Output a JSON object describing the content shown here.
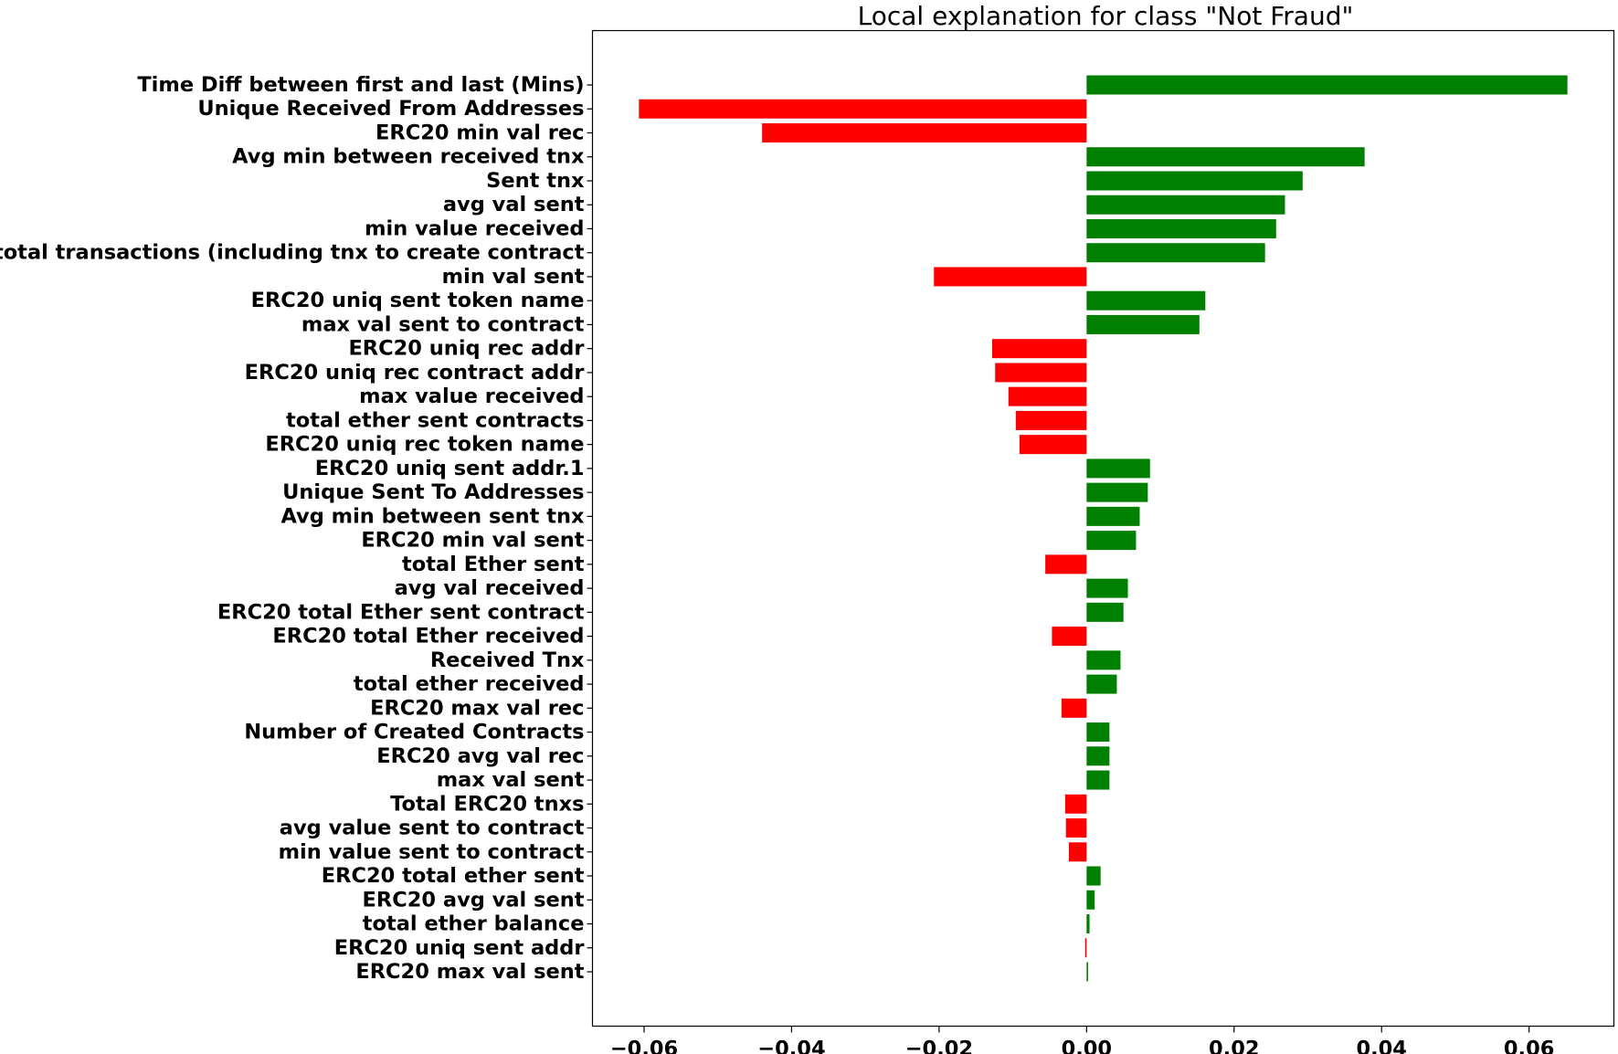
{
  "chart_data": {
    "type": "bar",
    "orientation": "horizontal",
    "title": "Local explanation for class \"Not Fraud\"",
    "xlabel": "",
    "ylabel": "",
    "xlim": [
      -0.067,
      0.0715
    ],
    "xticks": [
      -0.06,
      -0.04,
      -0.02,
      0.0,
      0.02,
      0.04,
      0.06
    ],
    "xtick_labels": [
      "−0.06",
      "−0.04",
      "−0.02",
      "0.00",
      "0.02",
      "0.04",
      "0.06"
    ],
    "grid": false,
    "colors": {
      "positive": "#008000",
      "negative": "#ff0000"
    },
    "categories": [
      "Time Diff between first and last (Mins)",
      "Unique Received From Addresses",
      "ERC20 min val rec",
      "Avg min between received tnx",
      "Sent tnx",
      "avg val sent",
      "min value received",
      "total transactions (including tnx to create contract",
      "min val sent",
      "ERC20 uniq sent token name",
      "max val sent to contract",
      "ERC20 uniq rec addr",
      "ERC20 uniq rec contract addr",
      "max value received ",
      "total ether sent contracts",
      "ERC20 uniq rec token name",
      "ERC20 uniq sent addr.1",
      "Unique Sent To Addresses",
      "Avg min between sent tnx",
      "ERC20 min val sent",
      "total Ether sent",
      "avg val received",
      "ERC20 total Ether sent contract",
      "ERC20 total Ether received",
      "Received Tnx",
      "total ether received",
      "ERC20 max val rec",
      "Number of Created Contracts",
      "ERC20 avg val rec",
      "max val sent",
      "Total ERC20 tnxs",
      "avg value sent to contract",
      "min value sent to contract",
      "ERC20 total ether sent",
      "ERC20 avg val sent",
      "total ether balance",
      "ERC20 uniq sent addr",
      "ERC20 max val sent"
    ],
    "values": [
      0.0652,
      -0.0607,
      -0.044,
      0.0377,
      0.0293,
      0.0269,
      0.0257,
      0.0242,
      -0.0207,
      0.0161,
      0.0153,
      -0.0128,
      -0.0124,
      -0.0106,
      -0.0096,
      -0.0091,
      0.0086,
      0.0083,
      0.0072,
      0.0067,
      -0.0056,
      0.0056,
      0.005,
      -0.0047,
      0.0046,
      0.0041,
      -0.0034,
      0.0031,
      0.0031,
      0.0031,
      -0.0029,
      -0.0028,
      -0.0024,
      0.0019,
      0.0011,
      0.0004,
      -0.0002,
      0.0002
    ]
  }
}
